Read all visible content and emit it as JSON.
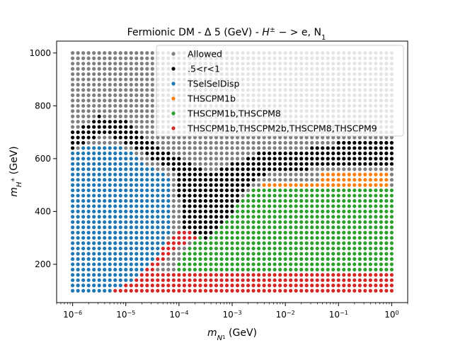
{
  "chart_data": {
    "type": "scatter",
    "title": {
      "prefix": "Fermionic DM - Δ 5 (GeV) - ",
      "math": "H",
      "math_sup": "±",
      "math_mid": " − > e, N",
      "math_sub": "1"
    },
    "xlabel": {
      "main": "m",
      "sub": "N",
      "subsub": "1",
      "unit": " (GeV)"
    },
    "ylabel": {
      "main": "m",
      "sub": "H",
      "subsup": "±",
      "unit": " (GeV)"
    },
    "x_scale": "log",
    "xlim": [
      5e-07,
      2.0
    ],
    "ylim": [
      55,
      1045
    ],
    "x_ticks": [
      {
        "value": 1e-06,
        "base": "10",
        "exp": "−6"
      },
      {
        "value": 1e-05,
        "base": "10",
        "exp": "−5"
      },
      {
        "value": 0.0001,
        "base": "10",
        "exp": "−4"
      },
      {
        "value": 0.001,
        "base": "10",
        "exp": "−3"
      },
      {
        "value": 0.01,
        "base": "10",
        "exp": "−2"
      },
      {
        "value": 0.1,
        "base": "10",
        "exp": "−1"
      },
      {
        "value": 1.0,
        "base": "10",
        "exp": "0"
      }
    ],
    "y_ticks": [
      {
        "value": 200,
        "label": "200"
      },
      {
        "value": 400,
        "label": "400"
      },
      {
        "value": 600,
        "label": "600"
      },
      {
        "value": 800,
        "label": "800"
      },
      {
        "value": 1000,
        "label": "1000"
      }
    ],
    "grid": false,
    "legend_position": "upper right",
    "series": [
      {
        "name": "Allowed",
        "color": "#7f7f7f"
      },
      {
        "name": ".5<r<1",
        "color": "#000000"
      },
      {
        "name": "TSelSelDisp",
        "color": "#1f77b4"
      },
      {
        "name": "THSCPM1b",
        "color": "#ff7f0e"
      },
      {
        "name": "THSCPM1b,THSCPM8",
        "color": "#2ca02c"
      },
      {
        "name": "THSCPM1b,THSCPM2b,THSCPM8,THSCPM9",
        "color": "#d62728"
      }
    ],
    "grid_scan": {
      "x_log10_range": [
        -6,
        0
      ],
      "x_points": 61,
      "y_range": [
        100,
        1000
      ],
      "y_step": 20
    },
    "regions": {
      "blue_upper": [
        [
          -6,
          620
        ],
        [
          -5.7,
          660
        ],
        [
          -5.3,
          660
        ],
        [
          -5.0,
          640
        ],
        [
          -4.6,
          580
        ],
        [
          -4.2,
          540
        ],
        [
          -4.1,
          380
        ],
        [
          -4.3,
          260
        ],
        [
          -4.7,
          160
        ],
        [
          -5.2,
          100
        ],
        [
          -6,
          100
        ]
      ],
      "black_band_lower": [
        [
          -6,
          630
        ],
        [
          -5.5,
          690
        ],
        [
          -5.2,
          680
        ],
        [
          -4.6,
          610
        ],
        [
          -4.1,
          560
        ],
        [
          -3.9,
          340
        ],
        [
          -3.5,
          300
        ],
        [
          -3.1,
          370
        ],
        [
          -2.6,
          520
        ],
        [
          -2.2,
          560
        ],
        [
          -1.6,
          560
        ],
        [
          -1,
          580
        ],
        [
          0,
          580
        ]
      ],
      "black_band_upper": [
        [
          -6,
          700
        ],
        [
          -5.5,
          760
        ],
        [
          -5.0,
          740
        ],
        [
          -4.5,
          660
        ],
        [
          -4.0,
          600
        ],
        [
          -3.4,
          540
        ],
        [
          -3.0,
          580
        ],
        [
          -2.5,
          620
        ],
        [
          -1.5,
          640
        ],
        [
          -1,
          660
        ],
        [
          0,
          660
        ]
      ],
      "orange_region": [
        [
          -2.4,
          500
        ],
        [
          -1.4,
          520
        ],
        [
          -1.4,
          560
        ],
        [
          0,
          560
        ],
        [
          0,
          500
        ]
      ],
      "green_threshold": [
        [
          -4.2,
          100
        ],
        [
          -3.9,
          250
        ],
        [
          -3.4,
          340
        ],
        [
          -3.0,
          420
        ],
        [
          -2.6,
          480
        ],
        [
          0,
          480
        ]
      ],
      "red_strip_top": 160,
      "red_diag": [
        [
          -5.2,
          100
        ],
        [
          -4.7,
          180
        ],
        [
          -4.3,
          250
        ],
        [
          -3.9,
          320
        ],
        [
          -3.5,
          360
        ],
        [
          -3.4,
          420
        ]
      ]
    }
  }
}
